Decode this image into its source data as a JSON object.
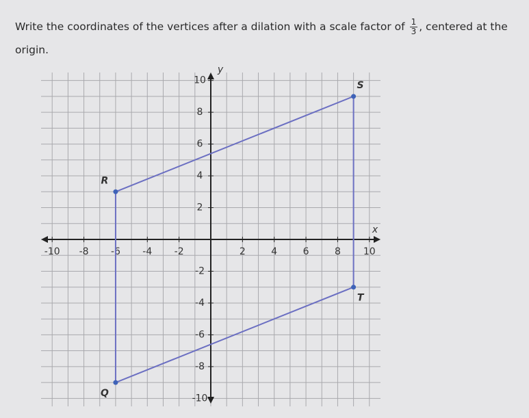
{
  "question": {
    "text_before": "Write the coordinates of the vertices after a dilation with a scale factor of",
    "numerator": "1",
    "denominator": "3",
    "text_after": ", centered at the",
    "text_line2": "origin."
  },
  "chart_data": {
    "type": "polygon",
    "x_label": "x",
    "y_label": "y",
    "points": [
      {
        "label": "R",
        "x": -6,
        "y": 3
      },
      {
        "label": "S",
        "x": 9,
        "y": 9
      },
      {
        "label": "T",
        "x": 9,
        "y": -3
      },
      {
        "label": "Q",
        "x": -6,
        "y": -9
      }
    ],
    "color": "#6b6fc2",
    "point_color": "#3f63b8",
    "xlim": [
      -10.7,
      10.7
    ],
    "ylim": [
      -10.5,
      10.5
    ],
    "xticks": [
      -10,
      -8,
      -6,
      -4,
      -2,
      2,
      4,
      6,
      8,
      10
    ],
    "yticks": [
      -10,
      -8,
      -6,
      -4,
      -2,
      2,
      4,
      6,
      8,
      10
    ],
    "grid": true
  }
}
